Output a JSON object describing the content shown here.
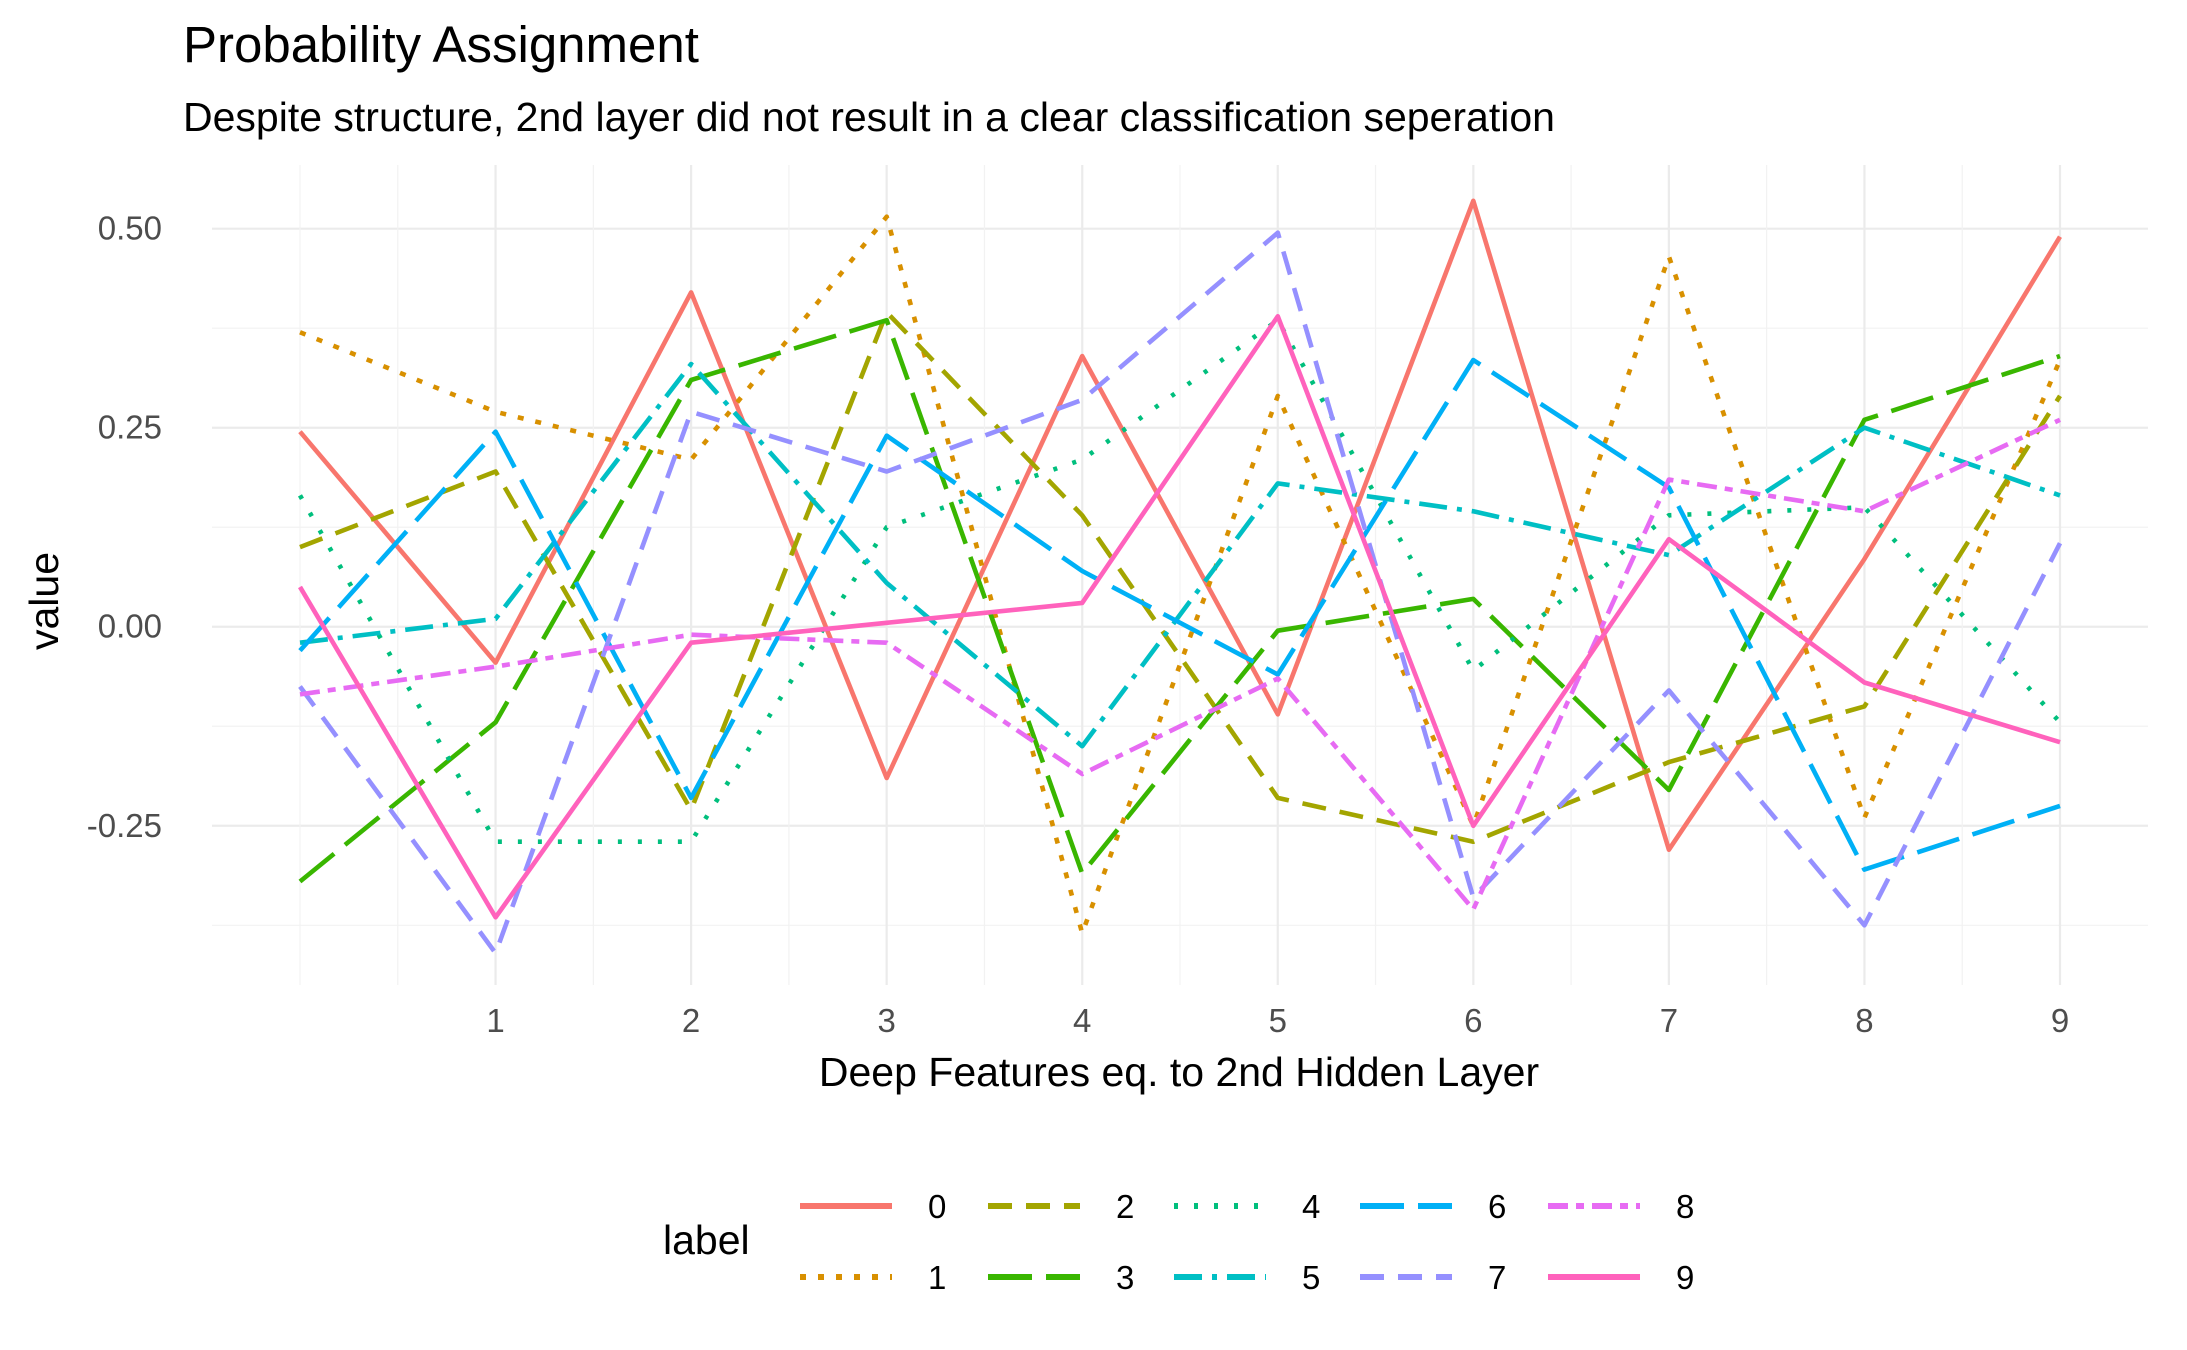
{
  "chart_data": {
    "type": "line",
    "title": "Probability Assignment",
    "subtitle": "Despite structure, 2nd layer did not result in a clear classification seperation",
    "xlabel": "Deep Features eq. to 2nd Hidden Layer",
    "ylabel": "value",
    "x": [
      0,
      1,
      2,
      3,
      4,
      5,
      6,
      7,
      8,
      9
    ],
    "x_ticks": [
      "1",
      "2",
      "3",
      "4",
      "5",
      "6",
      "7",
      "8",
      "9"
    ],
    "xlim": [
      -0.45,
      9.45
    ],
    "y_ticks": [
      -0.25,
      0,
      0.25,
      0.5
    ],
    "y_tick_labels": [
      "-0.25",
      "0.00",
      "0.25",
      "0.50"
    ],
    "ylim": [
      -0.45,
      0.58
    ],
    "grid": true,
    "legend": {
      "title": "label",
      "position": "bottom"
    },
    "series": [
      {
        "name": "0",
        "color": "#F8766D",
        "dash": "solid",
        "values": [
          0.245,
          -0.045,
          0.42,
          -0.19,
          0.34,
          -0.11,
          0.535,
          -0.28,
          0.085,
          0.49
        ]
      },
      {
        "name": "1",
        "color": "#D89000",
        "dash": "dotted",
        "values": [
          0.37,
          0.27,
          0.21,
          0.515,
          -0.385,
          0.29,
          -0.25,
          0.465,
          -0.24,
          0.335
        ]
      },
      {
        "name": "2",
        "color": "#A3A500",
        "dash": "dashed",
        "values": [
          0.1,
          0.195,
          -0.23,
          0.395,
          0.14,
          -0.215,
          -0.27,
          -0.17,
          -0.1,
          0.29
        ]
      },
      {
        "name": "3",
        "color": "#39B600",
        "dash": "longdash",
        "values": [
          -0.32,
          -0.12,
          0.31,
          0.385,
          -0.31,
          -0.005,
          0.035,
          -0.205,
          0.26,
          0.34
        ]
      },
      {
        "name": "4",
        "color": "#00BF7D",
        "dash": "dotted2",
        "values": [
          0.165,
          -0.27,
          -0.27,
          0.125,
          0.21,
          0.385,
          -0.055,
          0.14,
          0.15,
          -0.12
        ]
      },
      {
        "name": "5",
        "color": "#00BFC4",
        "dash": "dotdash",
        "values": [
          -0.02,
          0.01,
          0.33,
          0.055,
          -0.15,
          0.18,
          0.145,
          0.09,
          0.25,
          0.165
        ]
      },
      {
        "name": "6",
        "color": "#00B0F6",
        "dash": "longdash",
        "values": [
          -0.03,
          0.245,
          -0.215,
          0.24,
          0.07,
          -0.06,
          0.335,
          0.175,
          -0.305,
          -0.225
        ]
      },
      {
        "name": "7",
        "color": "#9590FF",
        "dash": "dashed",
        "values": [
          -0.075,
          -0.41,
          0.27,
          0.195,
          0.285,
          0.495,
          -0.34,
          -0.08,
          -0.375,
          0.105
        ]
      },
      {
        "name": "8",
        "color": "#E76BF3",
        "dash": "twodash",
        "values": [
          -0.085,
          -0.05,
          -0.01,
          -0.02,
          -0.185,
          -0.065,
          -0.355,
          0.185,
          0.145,
          0.26
        ]
      },
      {
        "name": "9",
        "color": "#FF62BC",
        "dash": "solid",
        "values": [
          0.05,
          -0.365,
          -0.02,
          0.005,
          0.03,
          0.39,
          -0.25,
          0.11,
          -0.07,
          -0.145
        ]
      }
    ]
  }
}
